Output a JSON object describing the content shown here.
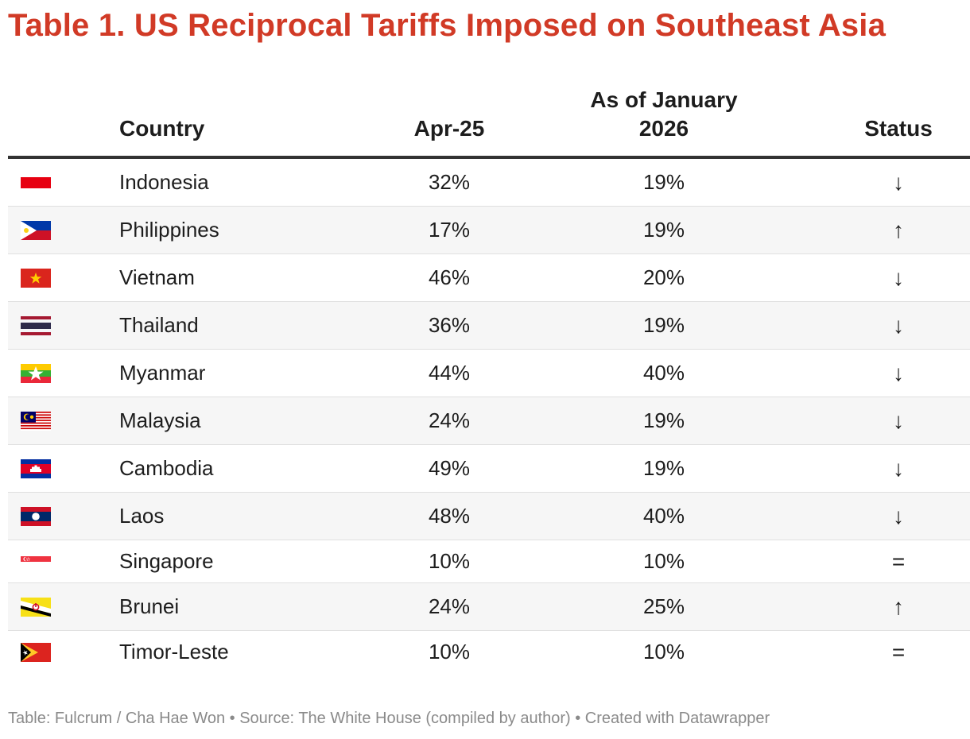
{
  "title": "Table 1. US Reciprocal Tariffs Imposed on Southeast Asia",
  "columns": {
    "country": "Country",
    "apr25": "Apr-25",
    "jan2026": "As of January 2026",
    "status": "Status"
  },
  "rows": [
    {
      "country": "Indonesia",
      "apr25": "32%",
      "jan2026": "19%",
      "status": "↓",
      "flag_icon": "indonesia-flag-icon"
    },
    {
      "country": "Philippines",
      "apr25": "17%",
      "jan2026": "19%",
      "status": "↑",
      "flag_icon": "philippines-flag-icon"
    },
    {
      "country": "Vietnam",
      "apr25": "46%",
      "jan2026": "20%",
      "status": "↓",
      "flag_icon": "vietnam-flag-icon"
    },
    {
      "country": "Thailand",
      "apr25": "36%",
      "jan2026": "19%",
      "status": "↓",
      "flag_icon": "thailand-flag-icon"
    },
    {
      "country": "Myanmar",
      "apr25": "44%",
      "jan2026": "40%",
      "status": "↓",
      "flag_icon": "myanmar-flag-icon"
    },
    {
      "country": "Malaysia",
      "apr25": "24%",
      "jan2026": "19%",
      "status": "↓",
      "flag_icon": "malaysia-flag-icon"
    },
    {
      "country": "Cambodia",
      "apr25": "49%",
      "jan2026": "19%",
      "status": "↓",
      "flag_icon": "cambodia-flag-icon"
    },
    {
      "country": "Laos",
      "apr25": "48%",
      "jan2026": "40%",
      "status": "↓",
      "flag_icon": "laos-flag-icon"
    },
    {
      "country": "Singapore",
      "apr25": "10%",
      "jan2026": "10%",
      "status": "=",
      "flag_icon": "singapore-flag-icon"
    },
    {
      "country": "Brunei",
      "apr25": "24%",
      "jan2026": "25%",
      "status": "↑",
      "flag_icon": "brunei-flag-icon"
    },
    {
      "country": "Timor-Leste",
      "apr25": "10%",
      "jan2026": "10%",
      "status": "=",
      "flag_icon": "timor-leste-flag-icon"
    }
  ],
  "footer": "Table: Fulcrum / Cha Hae Won • Source: The White House (compiled by author) • Created with Datawrapper",
  "colors": {
    "title": "#d13a26",
    "text": "#1d1d1d",
    "footer": "#8a8a8a",
    "rule": "#333333",
    "stripe": "#f6f6f6"
  }
}
